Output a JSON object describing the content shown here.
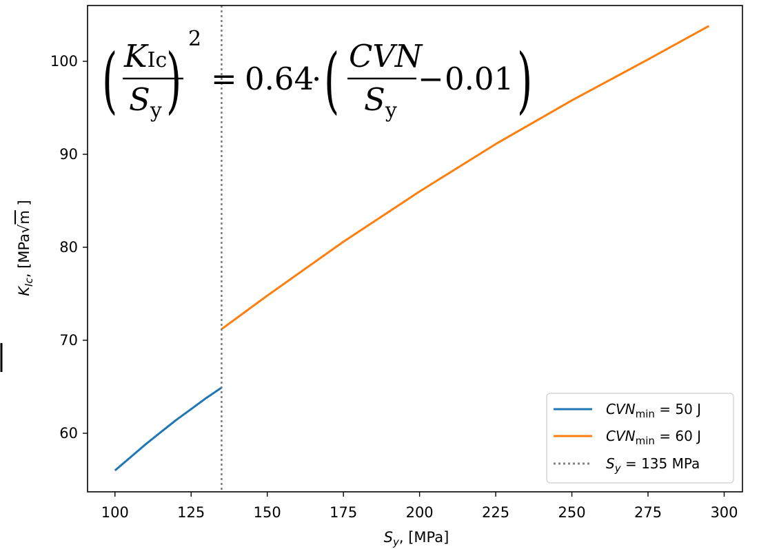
{
  "chart_data": {
    "type": "line",
    "xlabel": {
      "main": "S",
      "sub": "y",
      "unit": ", [MPa]"
    },
    "ylabel": {
      "main": "K",
      "sub": "Ic",
      "unit_pre": ", [MPa",
      "unit_root": "m",
      "unit_post": " ]"
    },
    "xlim": [
      91,
      306
    ],
    "ylim": [
      53.7,
      106
    ],
    "xticks": [
      100,
      125,
      150,
      175,
      200,
      225,
      250,
      275,
      300
    ],
    "yticks": [
      60,
      70,
      80,
      90,
      100
    ],
    "grid": false,
    "legend_position": "lower-right",
    "equation": {
      "lhs_num": "K",
      "lhs_num_sub": "Ic",
      "lhs_den": "S",
      "lhs_den_sub": "y",
      "exponent": "2",
      "equals": "=",
      "coef": "0.64",
      "dot": "·",
      "rhs_num": "CVN",
      "rhs_den": "S",
      "rhs_den_sub": "y",
      "minus": "−",
      "offset": "0.01"
    },
    "series": [
      {
        "name": {
          "main": "CVN",
          "sub": "min",
          "rest": " = 50 J"
        },
        "color": "#1f77b4",
        "style": "solid",
        "x": [
          100,
          105,
          110,
          115,
          120,
          125,
          130,
          135
        ],
        "y": [
          56.0,
          57.4,
          58.8,
          60.1,
          61.4,
          62.6,
          63.8,
          64.9
        ]
      },
      {
        "name": {
          "main": "CVN",
          "sub": "min",
          "rest": " = 60 J"
        },
        "color": "#ff7f0e",
        "style": "solid",
        "x": [
          135,
          150,
          175,
          200,
          225,
          250,
          275,
          295
        ],
        "y": [
          71.2,
          74.8,
          80.6,
          86.0,
          91.1,
          95.8,
          100.2,
          103.8
        ]
      },
      {
        "name": {
          "main": "S",
          "sub": "y",
          "rest": " = 135 MPa"
        },
        "color": "#808080",
        "style": "dotted",
        "vline_x": 135
      }
    ]
  }
}
